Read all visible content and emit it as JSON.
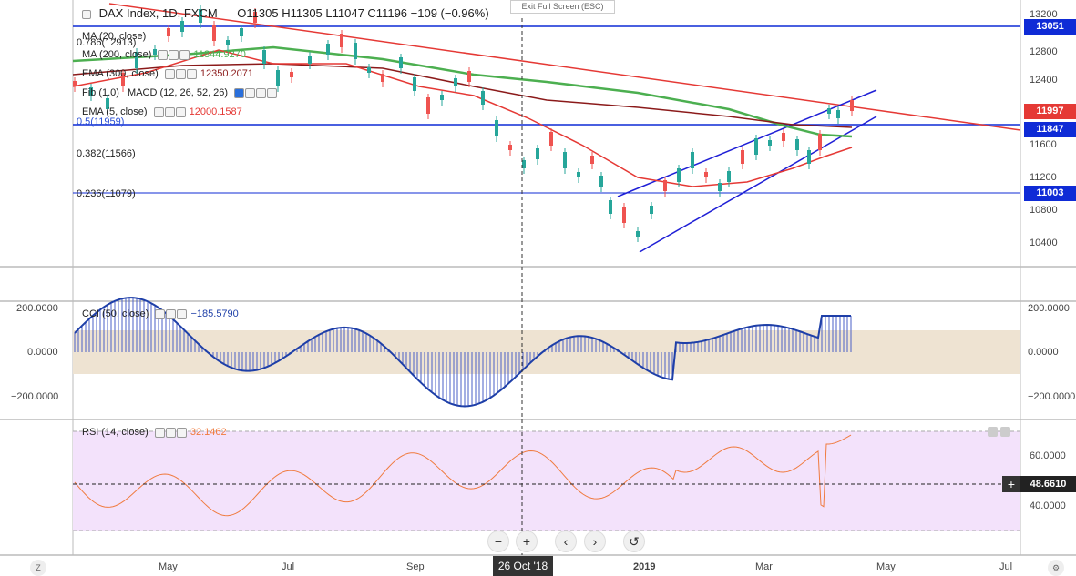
{
  "header": {
    "symbol": "DAX Index, 1D, FXCM",
    "ohlc": "O11305  H11305  L11047  C11196  −109 (−0.96%)",
    "exit_fullscreen": "Exit Full Screen (ESC)"
  },
  "legend": {
    "ma20": "MA (20, close)",
    "ma200": "MA (200, close)",
    "ma200_val": "11844.9270",
    "ema300": "EMA (300, close)",
    "ema300_val": "12350.2071",
    "fib_label": "Fib (1.0)",
    "macd": "MACD (12, 26, 52, 26)",
    "ema5": "EMA (5, close)",
    "ema5_val": "12000.1587",
    "fib_0786": "0.786(12913)",
    "fib_05": "0.5(11959)",
    "fib_0382": "0.382(11566)",
    "fib_0236": "0.236(11079)"
  },
  "price_axis": {
    "ticks": [
      "13200",
      "12800",
      "12400",
      "12000",
      "11600",
      "11200",
      "10800",
      "10400"
    ],
    "tags": [
      {
        "label": "13051",
        "color": "#0f2bd6"
      },
      {
        "label": "11997",
        "color": "#e53935"
      },
      {
        "label": "11847",
        "color": "#0f2bd6"
      },
      {
        "label": "11003",
        "color": "#0f2bd6"
      }
    ]
  },
  "cci": {
    "title": "CCI (50, close)",
    "value": "−185.5790",
    "ticks": [
      "200.0000",
      "0.0000",
      "−200.0000"
    ]
  },
  "rsi": {
    "title": "RSI (14, close)",
    "value": "32.1462",
    "ticks": [
      "60.0000",
      "40.0000"
    ],
    "cursor_value": "48.6610"
  },
  "time_axis": {
    "labels": [
      "May",
      "Jul",
      "Sep",
      "2019",
      "Mar",
      "May",
      "Jul"
    ],
    "cursor_date": "26 Oct '18"
  },
  "chart_data": {
    "type": "line",
    "title": "DAX Index, 1D, FXCM",
    "ylim": [
      10200,
      13300
    ],
    "horizontal_levels": [
      13051,
      11847,
      11003
    ],
    "fib_levels": [
      {
        "ratio": "0.786",
        "value": 12913
      },
      {
        "ratio": "0.5",
        "value": 11959
      },
      {
        "ratio": "0.382",
        "value": 11566
      },
      {
        "ratio": "0.236",
        "value": 11079
      }
    ],
    "last_price": 11997,
    "cci_last": -185.579,
    "rsi_last": 32.1462,
    "rsi_cursor": 48.661
  },
  "colors": {
    "blue_level": "#0f2bd6",
    "red_trend": "#e53935",
    "green_ma": "#4caf50",
    "maroon_ma": "#8b1a1a",
    "cci_line": "#1e3fa8",
    "cci_band": "#eee3d2",
    "rsi_line": "#f07b3f",
    "rsi_band": "#f3e2fb",
    "up_candle": "#26a69a",
    "down_candle": "#ef5350"
  }
}
